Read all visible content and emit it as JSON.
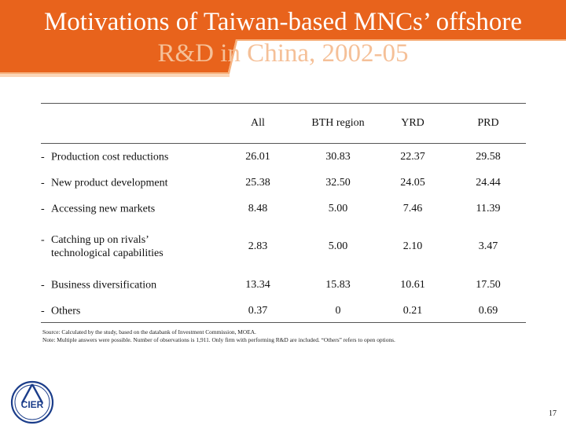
{
  "slide": {
    "title_line1": "Motivations of Taiwan-based MNCs’ offshore",
    "title_line2": "R&D in China, 2002-05",
    "page_number": "17"
  },
  "colors": {
    "header_orange": "#e8631c",
    "header_light": "#f19a52",
    "logo_blue": "#1b3d8a"
  },
  "table": {
    "columns": [
      "All",
      "BTH region",
      "YRD",
      "PRD"
    ],
    "rows": [
      {
        "label": "Production cost reductions",
        "values": [
          "26.01",
          "30.83",
          "22.37",
          "29.58"
        ]
      },
      {
        "label": "New product development",
        "values": [
          "25.38",
          "32.50",
          "24.05",
          "24.44"
        ]
      },
      {
        "label": "Accessing new markets",
        "values": [
          "8.48",
          "5.00",
          "7.46",
          "11.39"
        ]
      },
      {
        "label": "Catching up on rivals’ technological capabilities",
        "values": [
          "2.83",
          "5.00",
          "2.10",
          "3.47"
        ]
      },
      {
        "label": "Business diversification",
        "values": [
          "13.34",
          "15.83",
          "10.61",
          "17.50"
        ]
      },
      {
        "label": "Others",
        "values": [
          "0.37",
          "0",
          "0.21",
          "0.69"
        ]
      }
    ],
    "dash": "-"
  },
  "notes": {
    "source": "Source: Calculated by the study, based on the databank of Investment Commission, MOEA.",
    "note": "Note: Multiple answers were possible. Number of observations is 1,911. Only firm with performing R&D are included. “Others” refers to open options."
  },
  "logo": {
    "text": "CIER",
    "icon": "cier-logo-icon"
  }
}
